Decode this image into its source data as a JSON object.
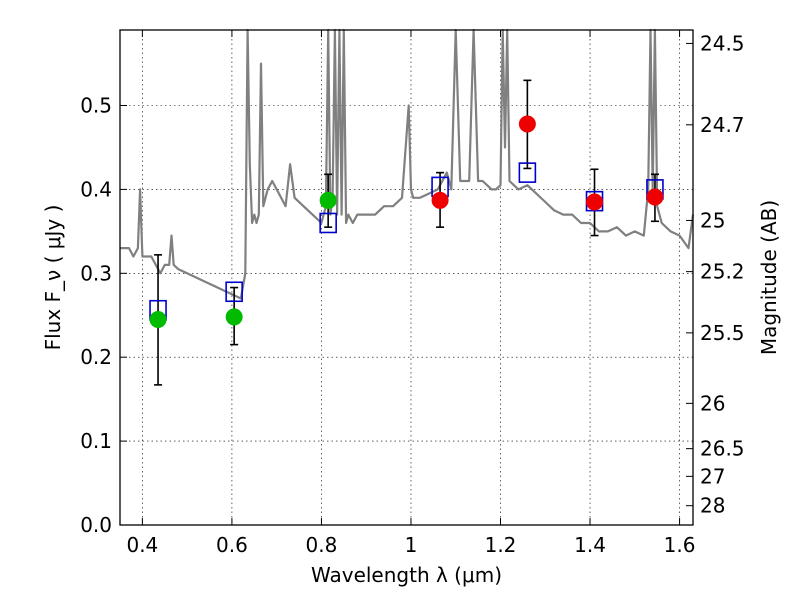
{
  "chart_data": {
    "type": "scatter",
    "xlabel": "Wavelength  λ (μm)",
    "ylabel": "Flux  F_ν  ( μJy )",
    "ylabel_right": "Magnitude (AB)",
    "xlim": [
      0.35,
      1.63
    ],
    "ylim": [
      0.0,
      0.59
    ],
    "grid": true,
    "x_ticks": [
      0.4,
      0.6,
      0.8,
      1.0,
      1.2,
      1.4,
      1.6
    ],
    "x_tick_labels": [
      "0.4",
      "0.6",
      "0.8",
      "1",
      "1.2",
      "1.4",
      "1.6"
    ],
    "y_ticks": [
      0.0,
      0.1,
      0.2,
      0.3,
      0.4,
      0.5
    ],
    "y_tick_labels": [
      "0.0",
      "0.1",
      "0.2",
      "0.3",
      "0.4",
      "0.5"
    ],
    "right_ticks": [
      {
        "label": "24.5",
        "flux": 0.574
      },
      {
        "label": "24.7",
        "flux": 0.477
      },
      {
        "label": "25",
        "flux": 0.363
      },
      {
        "label": "25.2",
        "flux": 0.302
      },
      {
        "label": "25.5",
        "flux": 0.229
      },
      {
        "label": "26",
        "flux": 0.145
      },
      {
        "label": "26.5",
        "flux": 0.091
      },
      {
        "label": "27",
        "flux": 0.058
      },
      {
        "label": "28",
        "flux": 0.023
      }
    ],
    "model_spectrum": {
      "color": "#808080",
      "x": [
        0.35,
        0.36,
        0.37,
        0.38,
        0.39,
        0.395,
        0.4,
        0.41,
        0.42,
        0.43,
        0.44,
        0.45,
        0.46,
        0.465,
        0.47,
        0.48,
        0.5,
        0.52,
        0.54,
        0.56,
        0.58,
        0.6,
        0.62,
        0.63,
        0.635,
        0.64,
        0.645,
        0.65,
        0.655,
        0.66,
        0.665,
        0.67,
        0.68,
        0.69,
        0.7,
        0.72,
        0.73,
        0.74,
        0.76,
        0.78,
        0.8,
        0.81,
        0.815,
        0.82,
        0.825,
        0.83,
        0.835,
        0.84,
        0.845,
        0.85,
        0.855,
        0.86,
        0.87,
        0.88,
        0.9,
        0.92,
        0.94,
        0.96,
        0.98,
        0.995,
        1.0,
        1.005,
        1.02,
        1.04,
        1.06,
        1.07,
        1.08,
        1.09,
        1.1,
        1.11,
        1.12,
        1.13,
        1.14,
        1.15,
        1.16,
        1.17,
        1.18,
        1.19,
        1.2,
        1.205,
        1.21,
        1.215,
        1.22,
        1.24,
        1.26,
        1.28,
        1.3,
        1.32,
        1.34,
        1.36,
        1.38,
        1.4,
        1.42,
        1.44,
        1.46,
        1.48,
        1.5,
        1.52,
        1.53,
        1.535,
        1.54,
        1.545,
        1.55,
        1.56,
        1.58,
        1.6,
        1.62,
        1.63
      ],
      "y": [
        0.33,
        0.33,
        0.33,
        0.32,
        0.33,
        0.4,
        0.32,
        0.32,
        0.32,
        0.31,
        0.3,
        0.31,
        0.31,
        0.345,
        0.31,
        0.305,
        0.3,
        0.295,
        0.29,
        0.285,
        0.28,
        0.275,
        0.27,
        0.3,
        0.59,
        0.43,
        0.36,
        0.37,
        0.36,
        0.37,
        0.55,
        0.38,
        0.4,
        0.41,
        0.4,
        0.38,
        0.43,
        0.39,
        0.38,
        0.37,
        0.36,
        0.38,
        0.59,
        0.37,
        0.39,
        0.59,
        0.37,
        0.59,
        0.37,
        0.59,
        0.36,
        0.37,
        0.36,
        0.37,
        0.37,
        0.37,
        0.38,
        0.38,
        0.39,
        0.5,
        0.4,
        0.39,
        0.39,
        0.395,
        0.4,
        0.41,
        0.42,
        0.4,
        0.59,
        0.41,
        0.41,
        0.41,
        0.59,
        0.41,
        0.41,
        0.405,
        0.4,
        0.4,
        0.405,
        0.59,
        0.45,
        0.59,
        0.41,
        0.4,
        0.405,
        0.395,
        0.385,
        0.375,
        0.37,
        0.37,
        0.36,
        0.36,
        0.35,
        0.35,
        0.355,
        0.345,
        0.35,
        0.345,
        0.4,
        0.59,
        0.4,
        0.59,
        0.38,
        0.36,
        0.35,
        0.345,
        0.33,
        0.37
      ]
    },
    "series": [
      {
        "marker": "open-square",
        "color": "#0000cc",
        "points": [
          {
            "x": 0.435,
            "y": 0.256
          },
          {
            "x": 0.605,
            "y": 0.278
          },
          {
            "x": 0.815,
            "y": 0.36
          },
          {
            "x": 1.065,
            "y": 0.403
          },
          {
            "x": 1.26,
            "y": 0.42
          },
          {
            "x": 1.41,
            "y": 0.386
          },
          {
            "x": 1.545,
            "y": 0.4
          }
        ]
      },
      {
        "marker": "filled-circle",
        "color": "#00bb00",
        "points": [
          {
            "x": 0.435,
            "y": 0.245,
            "ylo": 0.167,
            "yhi": 0.322
          },
          {
            "x": 0.605,
            "y": 0.248,
            "ylo": 0.215,
            "yhi": 0.283
          },
          {
            "x": 0.815,
            "y": 0.387,
            "ylo": 0.355,
            "yhi": 0.418
          }
        ]
      },
      {
        "marker": "filled-circle",
        "color": "#ee0000",
        "points": [
          {
            "x": 1.065,
            "y": 0.387,
            "ylo": 0.355,
            "yhi": 0.42
          },
          {
            "x": 1.26,
            "y": 0.478,
            "ylo": 0.425,
            "yhi": 0.53
          },
          {
            "x": 1.41,
            "y": 0.385,
            "ylo": 0.345,
            "yhi": 0.424
          },
          {
            "x": 1.545,
            "y": 0.391,
            "ylo": 0.362,
            "yhi": 0.418
          }
        ]
      }
    ]
  }
}
